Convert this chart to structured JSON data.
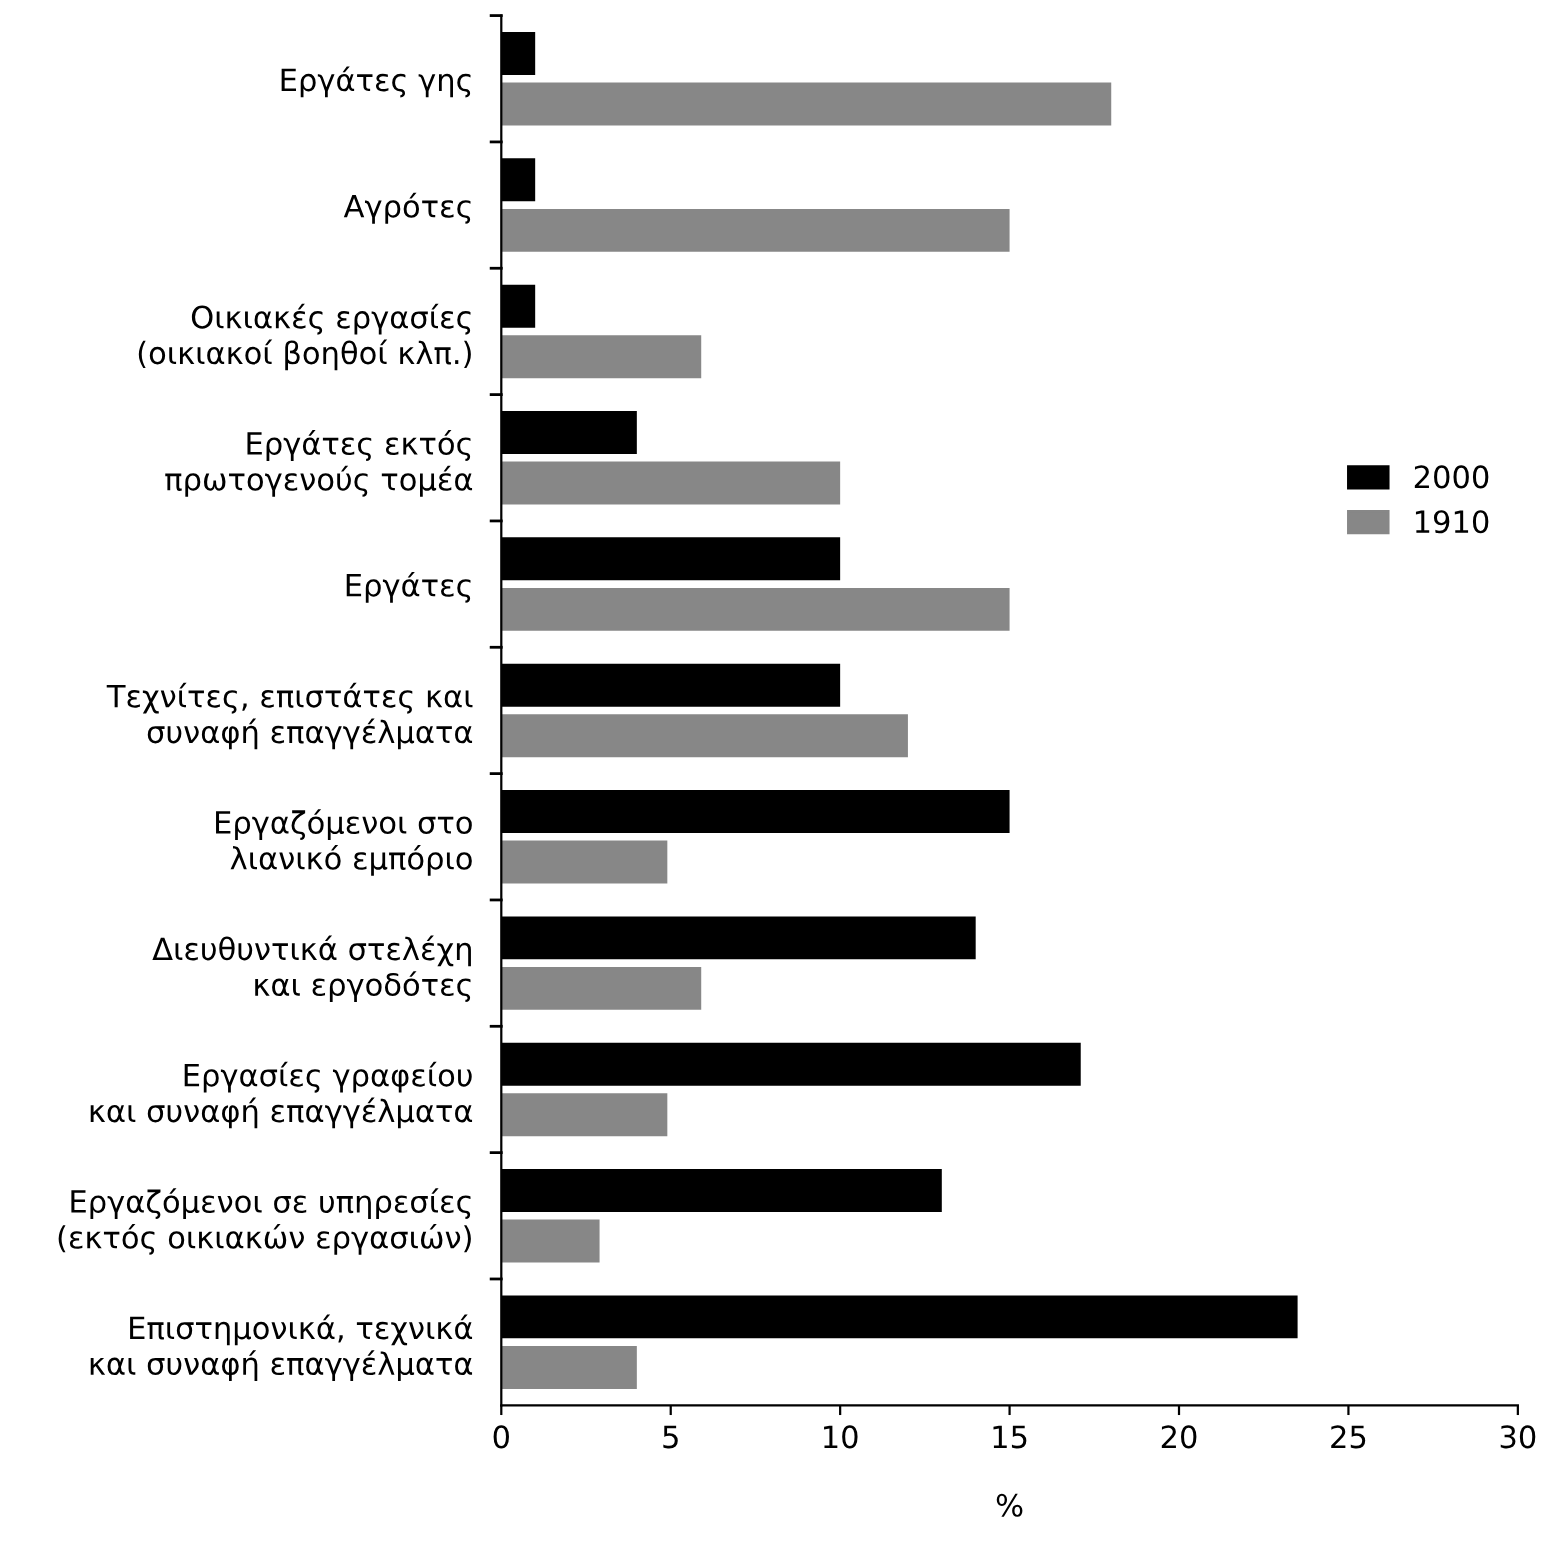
{
  "chart_data": {
    "type": "bar",
    "orientation": "horizontal",
    "xlabel": "%",
    "categories": [
      "Εργάτες γης",
      "Αγρότες",
      "Οικιακές εργασίες\n(οικιακοί βοηθοί κλπ.)",
      "Εργάτες εκτός\nπρωτογενούς τομέα",
      "Εργάτες",
      "Τεχνίτες, επιστάτες και\nσυναφή επαγγέλματα",
      "Εργαζόμενοι στο\nλιανικό εμπόριο",
      "Διευθυντικά στελέχη\nκαι εργοδότες",
      "Εργασίες γραφείου\nκαι συναφή επαγγέλματα",
      "Εργαζόμενοι σε υπηρεσίες\n(εκτός οικιακών εργασιών)",
      "Επιστημονικά, τεχνικά\nκαι συναφή επαγγέλματα"
    ],
    "series": [
      {
        "name": "2000",
        "color": "#000000",
        "values": [
          1,
          1,
          1,
          4,
          10,
          10,
          15,
          14,
          17.1,
          13,
          23.5
        ]
      },
      {
        "name": "1910",
        "color": "#878787",
        "values": [
          18,
          15,
          5.9,
          10,
          15,
          12,
          4.9,
          5.9,
          4.9,
          2.9,
          4
        ]
      }
    ],
    "xlim": [
      0,
      30
    ],
    "xticks": [
      0,
      5,
      10,
      15,
      20,
      25,
      30
    ],
    "grid": false,
    "legend": "right"
  }
}
